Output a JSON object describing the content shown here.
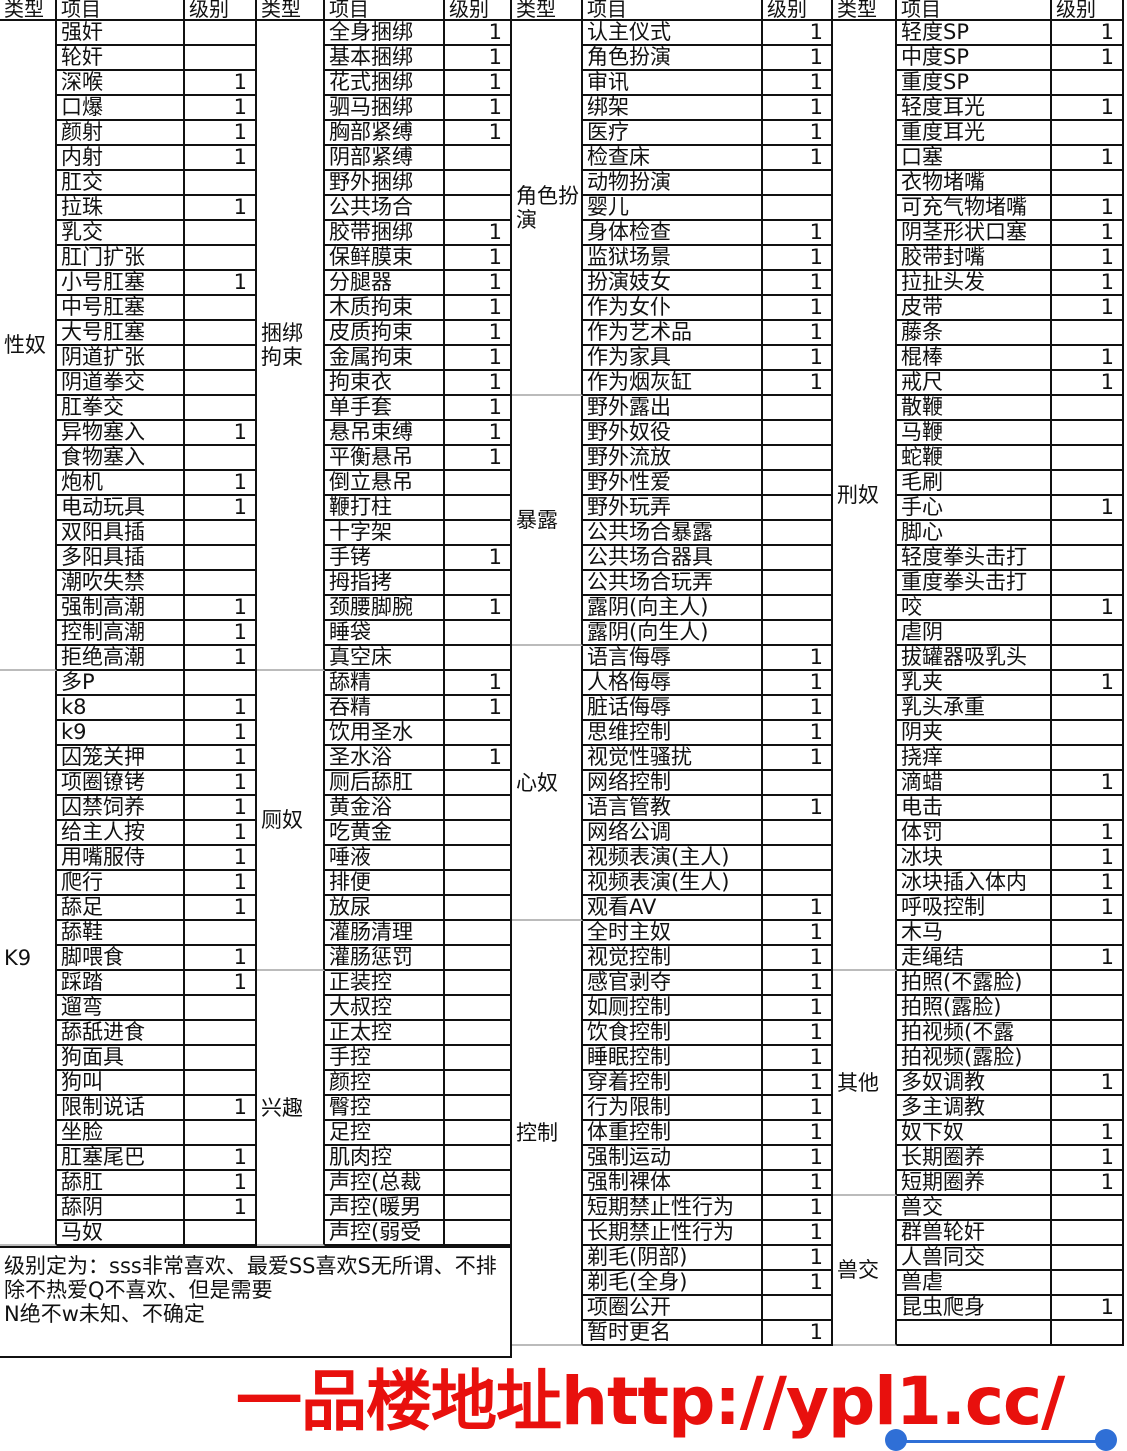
{
  "header": {
    "type": "类型",
    "item": "项目",
    "level": "级别"
  },
  "groups": [
    {
      "categories": [
        {
          "type": "性奴",
          "rows": [
            {
              "item": "强奸",
              "level": ""
            },
            {
              "item": "轮奸",
              "level": ""
            },
            {
              "item": "深喉",
              "level": "1"
            },
            {
              "item": "口爆",
              "level": "1"
            },
            {
              "item": "颜射",
              "level": "1"
            },
            {
              "item": "内射",
              "level": "1"
            },
            {
              "item": "肛交",
              "level": ""
            },
            {
              "item": "拉珠",
              "level": "1"
            },
            {
              "item": "乳交",
              "level": ""
            },
            {
              "item": "肛门扩张",
              "level": ""
            },
            {
              "item": "小号肛塞",
              "level": "1"
            },
            {
              "item": "中号肛塞",
              "level": ""
            },
            {
              "item": "大号肛塞",
              "level": ""
            },
            {
              "item": "阴道扩张",
              "level": ""
            },
            {
              "item": "阴道拳交",
              "level": ""
            },
            {
              "item": "肛拳交",
              "level": ""
            },
            {
              "item": "异物塞入",
              "level": "1"
            },
            {
              "item": "食物塞入",
              "level": ""
            },
            {
              "item": "炮机",
              "level": "1"
            },
            {
              "item": "电动玩具",
              "level": "1"
            },
            {
              "item": "双阳具插",
              "level": ""
            },
            {
              "item": "多阳具插",
              "level": ""
            },
            {
              "item": "潮吹失禁",
              "level": ""
            },
            {
              "item": "强制高潮",
              "level": "1"
            },
            {
              "item": "控制高潮",
              "level": "1"
            },
            {
              "item": "拒绝高潮",
              "level": "1"
            }
          ]
        },
        {
          "type": "K9",
          "rows": [
            {
              "item": "多P",
              "level": ""
            },
            {
              "item": "k8",
              "level": "1"
            },
            {
              "item": "k9",
              "level": "1"
            },
            {
              "item": "囚笼关押",
              "level": "1"
            },
            {
              "item": "项圈镣铐",
              "level": "1"
            },
            {
              "item": "囚禁饲养",
              "level": "1"
            },
            {
              "item": "给主人按",
              "level": "1"
            },
            {
              "item": "用嘴服侍",
              "level": "1"
            },
            {
              "item": "爬行",
              "level": "1"
            },
            {
              "item": "舔足",
              "level": "1"
            },
            {
              "item": "舔鞋",
              "level": ""
            },
            {
              "item": "脚喂食",
              "level": "1"
            },
            {
              "item": "踩踏",
              "level": "1"
            },
            {
              "item": "遛弯",
              "level": ""
            },
            {
              "item": "舔舐进食",
              "level": ""
            },
            {
              "item": "狗面具",
              "level": ""
            },
            {
              "item": "狗叫",
              "level": ""
            },
            {
              "item": "限制说话",
              "level": "1"
            },
            {
              "item": "坐脸",
              "level": ""
            },
            {
              "item": "肛塞尾巴",
              "level": "1"
            },
            {
              "item": "舔肛",
              "level": "1"
            },
            {
              "item": "舔阴",
              "level": "1"
            },
            {
              "item": "马奴",
              "level": ""
            }
          ]
        }
      ]
    },
    {
      "categories": [
        {
          "type": "捆绑拘束",
          "rows": [
            {
              "item": "全身捆绑",
              "level": "1"
            },
            {
              "item": "基本捆绑",
              "level": "1"
            },
            {
              "item": "花式捆绑",
              "level": "1"
            },
            {
              "item": "驷马捆绑",
              "level": "1"
            },
            {
              "item": "胸部紧缚",
              "level": "1"
            },
            {
              "item": "阴部紧缚",
              "level": ""
            },
            {
              "item": "野外捆绑",
              "level": ""
            },
            {
              "item": "公共场合",
              "level": ""
            },
            {
              "item": "胶带捆绑",
              "level": "1"
            },
            {
              "item": "保鲜膜束",
              "level": "1"
            },
            {
              "item": "分腿器",
              "level": "1"
            },
            {
              "item": "木质拘束",
              "level": "1"
            },
            {
              "item": "皮质拘束",
              "level": "1"
            },
            {
              "item": "金属拘束",
              "level": "1"
            },
            {
              "item": "拘束衣",
              "level": "1"
            },
            {
              "item": "单手套",
              "level": "1"
            },
            {
              "item": "悬吊束缚",
              "level": "1"
            },
            {
              "item": "平衡悬吊",
              "level": "1"
            },
            {
              "item": "倒立悬吊",
              "level": ""
            },
            {
              "item": "鞭打柱",
              "level": ""
            },
            {
              "item": "十字架",
              "level": ""
            },
            {
              "item": "手铐",
              "level": "1"
            },
            {
              "item": "拇指拷",
              "level": ""
            },
            {
              "item": "颈腰脚腕",
              "level": "1"
            },
            {
              "item": "睡袋",
              "level": ""
            },
            {
              "item": "真空床",
              "level": ""
            }
          ]
        },
        {
          "type": "厕奴",
          "rows": [
            {
              "item": "舔精",
              "level": "1"
            },
            {
              "item": "吞精",
              "level": "1"
            },
            {
              "item": "饮用圣水",
              "level": ""
            },
            {
              "item": "圣水浴",
              "level": "1"
            },
            {
              "item": "厕后舔肛",
              "level": ""
            },
            {
              "item": "黄金浴",
              "level": ""
            },
            {
              "item": "吃黄金",
              "level": ""
            },
            {
              "item": "唾液",
              "level": ""
            },
            {
              "item": "排便",
              "level": ""
            },
            {
              "item": "放尿",
              "level": ""
            },
            {
              "item": "灌肠清理",
              "level": ""
            },
            {
              "item": "灌肠惩罚",
              "level": ""
            }
          ]
        },
        {
          "type": "兴趣",
          "rows": [
            {
              "item": "正装控",
              "level": ""
            },
            {
              "item": "大叔控",
              "level": ""
            },
            {
              "item": "正太控",
              "level": ""
            },
            {
              "item": "手控",
              "level": ""
            },
            {
              "item": "颜控",
              "level": ""
            },
            {
              "item": "臀控",
              "level": ""
            },
            {
              "item": "足控",
              "level": ""
            },
            {
              "item": "肌肉控",
              "level": ""
            },
            {
              "item": "声控(总裁",
              "level": ""
            },
            {
              "item": "声控(暖男",
              "level": ""
            },
            {
              "item": "声控(弱受",
              "level": ""
            }
          ]
        }
      ]
    },
    {
      "categories": [
        {
          "type": "角色扮演",
          "rows": [
            {
              "item": "认主仪式",
              "level": "1"
            },
            {
              "item": "角色扮演",
              "level": "1"
            },
            {
              "item": "审讯",
              "level": "1"
            },
            {
              "item": "绑架",
              "level": "1"
            },
            {
              "item": "医疗",
              "level": "1"
            },
            {
              "item": "检查床",
              "level": "1"
            },
            {
              "item": "动物扮演",
              "level": ""
            },
            {
              "item": "婴儿",
              "level": ""
            },
            {
              "item": "身体检查",
              "level": "1"
            },
            {
              "item": "监狱场景",
              "level": "1"
            },
            {
              "item": "扮演妓女",
              "level": "1"
            },
            {
              "item": "作为女仆",
              "level": "1"
            },
            {
              "item": "作为艺术品",
              "level": "1"
            },
            {
              "item": "作为家具",
              "level": "1"
            },
            {
              "item": "作为烟灰缸",
              "level": "1"
            }
          ]
        },
        {
          "type": "暴露",
          "rows": [
            {
              "item": "野外露出",
              "level": ""
            },
            {
              "item": "野外奴役",
              "level": ""
            },
            {
              "item": "野外流放",
              "level": ""
            },
            {
              "item": "野外性爱",
              "level": ""
            },
            {
              "item": "野外玩弄",
              "level": ""
            },
            {
              "item": "公共场合暴露",
              "level": ""
            },
            {
              "item": "公共场合器具",
              "level": ""
            },
            {
              "item": "公共场合玩弄",
              "level": ""
            },
            {
              "item": "露阴(向主人)",
              "level": ""
            },
            {
              "item": "露阴(向生人)",
              "level": ""
            }
          ]
        },
        {
          "type": "心奴",
          "rows": [
            {
              "item": "语言侮辱",
              "level": "1"
            },
            {
              "item": "人格侮辱",
              "level": "1"
            },
            {
              "item": "脏话侮辱",
              "level": "1"
            },
            {
              "item": "思维控制",
              "level": "1"
            },
            {
              "item": "视觉性骚扰",
              "level": "1"
            },
            {
              "item": "网络控制",
              "level": ""
            },
            {
              "item": "语言管教",
              "level": "1"
            },
            {
              "item": "网络公调",
              "level": ""
            },
            {
              "item": "视频表演(主人)",
              "level": ""
            },
            {
              "item": "视频表演(生人)",
              "level": ""
            },
            {
              "item": "观看AV",
              "level": "1"
            }
          ]
        },
        {
          "type": "控制",
          "rows": [
            {
              "item": "全时主奴",
              "level": "1"
            },
            {
              "item": "视觉控制",
              "level": "1"
            },
            {
              "item": "感官剥夺",
              "level": "1"
            },
            {
              "item": "如厕控制",
              "level": "1"
            },
            {
              "item": "饮食控制",
              "level": "1"
            },
            {
              "item": "睡眠控制",
              "level": "1"
            },
            {
              "item": "穿着控制",
              "level": "1"
            },
            {
              "item": "行为限制",
              "level": "1"
            },
            {
              "item": "体重控制",
              "level": "1"
            },
            {
              "item": "强制运动",
              "level": "1"
            },
            {
              "item": "强制裸体",
              "level": "1"
            },
            {
              "item": "短期禁止性行为",
              "level": "1"
            },
            {
              "item": "长期禁止性行为",
              "level": "1"
            },
            {
              "item": "剃毛(阴部)",
              "level": "1"
            },
            {
              "item": "剃毛(全身)",
              "level": "1"
            },
            {
              "item": "项圈公开",
              "level": ""
            },
            {
              "item": "暂时更名",
              "level": "1"
            }
          ]
        }
      ]
    },
    {
      "categories": [
        {
          "type": "刑奴",
          "rows": [
            {
              "item": "轻度SP",
              "level": "1"
            },
            {
              "item": "中度SP",
              "level": "1"
            },
            {
              "item": "重度SP",
              "level": ""
            },
            {
              "item": "轻度耳光",
              "level": "1"
            },
            {
              "item": "重度耳光",
              "level": ""
            },
            {
              "item": "口塞",
              "level": "1"
            },
            {
              "item": "衣物堵嘴",
              "level": ""
            },
            {
              "item": "可充气物堵嘴",
              "level": "1"
            },
            {
              "item": "阴茎形状口塞",
              "level": "1"
            },
            {
              "item": "胶带封嘴",
              "level": "1"
            },
            {
              "item": "拉扯头发",
              "level": "1"
            },
            {
              "item": "皮带",
              "level": "1"
            },
            {
              "item": "藤条",
              "level": ""
            },
            {
              "item": "棍棒",
              "level": "1"
            },
            {
              "item": "戒尺",
              "level": "1"
            },
            {
              "item": "散鞭",
              "level": ""
            },
            {
              "item": "马鞭",
              "level": ""
            },
            {
              "item": "蛇鞭",
              "level": ""
            },
            {
              "item": "毛刷",
              "level": ""
            },
            {
              "item": "手心",
              "level": "1"
            },
            {
              "item": "脚心",
              "level": ""
            },
            {
              "item": "轻度拳头击打",
              "level": ""
            },
            {
              "item": "重度拳头击打",
              "level": ""
            },
            {
              "item": "咬",
              "level": "1"
            },
            {
              "item": "虐阴",
              "level": ""
            },
            {
              "item": "拔罐器吸乳头",
              "level": ""
            },
            {
              "item": "乳夹",
              "level": "1"
            },
            {
              "item": "乳头承重",
              "level": ""
            },
            {
              "item": "阴夹",
              "level": ""
            },
            {
              "item": "挠痒",
              "level": ""
            },
            {
              "item": "滴蜡",
              "level": "1"
            },
            {
              "item": "电击",
              "level": ""
            },
            {
              "item": "体罚",
              "level": "1"
            },
            {
              "item": "冰块",
              "level": "1"
            },
            {
              "item": "冰块插入体内",
              "level": "1"
            },
            {
              "item": "呼吸控制",
              "level": "1"
            },
            {
              "item": "木马",
              "level": ""
            },
            {
              "item": "走绳结",
              "level": "1"
            }
          ]
        },
        {
          "type": "其他",
          "rows": [
            {
              "item": "拍照(不露脸)",
              "level": ""
            },
            {
              "item": "拍照(露脸)",
              "level": ""
            },
            {
              "item": "拍视频(不露",
              "level": ""
            },
            {
              "item": "拍视频(露脸)",
              "level": ""
            },
            {
              "item": "多奴调教",
              "level": "1"
            },
            {
              "item": "多主调教",
              "level": ""
            },
            {
              "item": "奴下奴",
              "level": "1"
            },
            {
              "item": "长期圈养",
              "level": "1"
            },
            {
              "item": "短期圈养",
              "level": "1"
            }
          ]
        },
        {
          "type": "兽交",
          "rows": [
            {
              "item": "兽交",
              "level": ""
            },
            {
              "item": "群兽轮奸",
              "level": ""
            },
            {
              "item": "人兽同交",
              "level": ""
            },
            {
              "item": "兽虐",
              "level": ""
            },
            {
              "item": "昆虫爬身",
              "level": "1"
            },
            {
              "item": "",
              "level": ""
            }
          ]
        }
      ]
    }
  ],
  "footer": {
    "note": "级别定为：sss非常喜欢、最爱SS喜欢S无所谓、不排除不热爱Q不喜欢、但是需要\nN绝不w未知、不确定"
  },
  "watermark": "一品楼地址http://ypl1.cc/",
  "colors": {
    "watermark": "#e8100d",
    "selection": "#2f6fd6",
    "grid": "#111111"
  }
}
